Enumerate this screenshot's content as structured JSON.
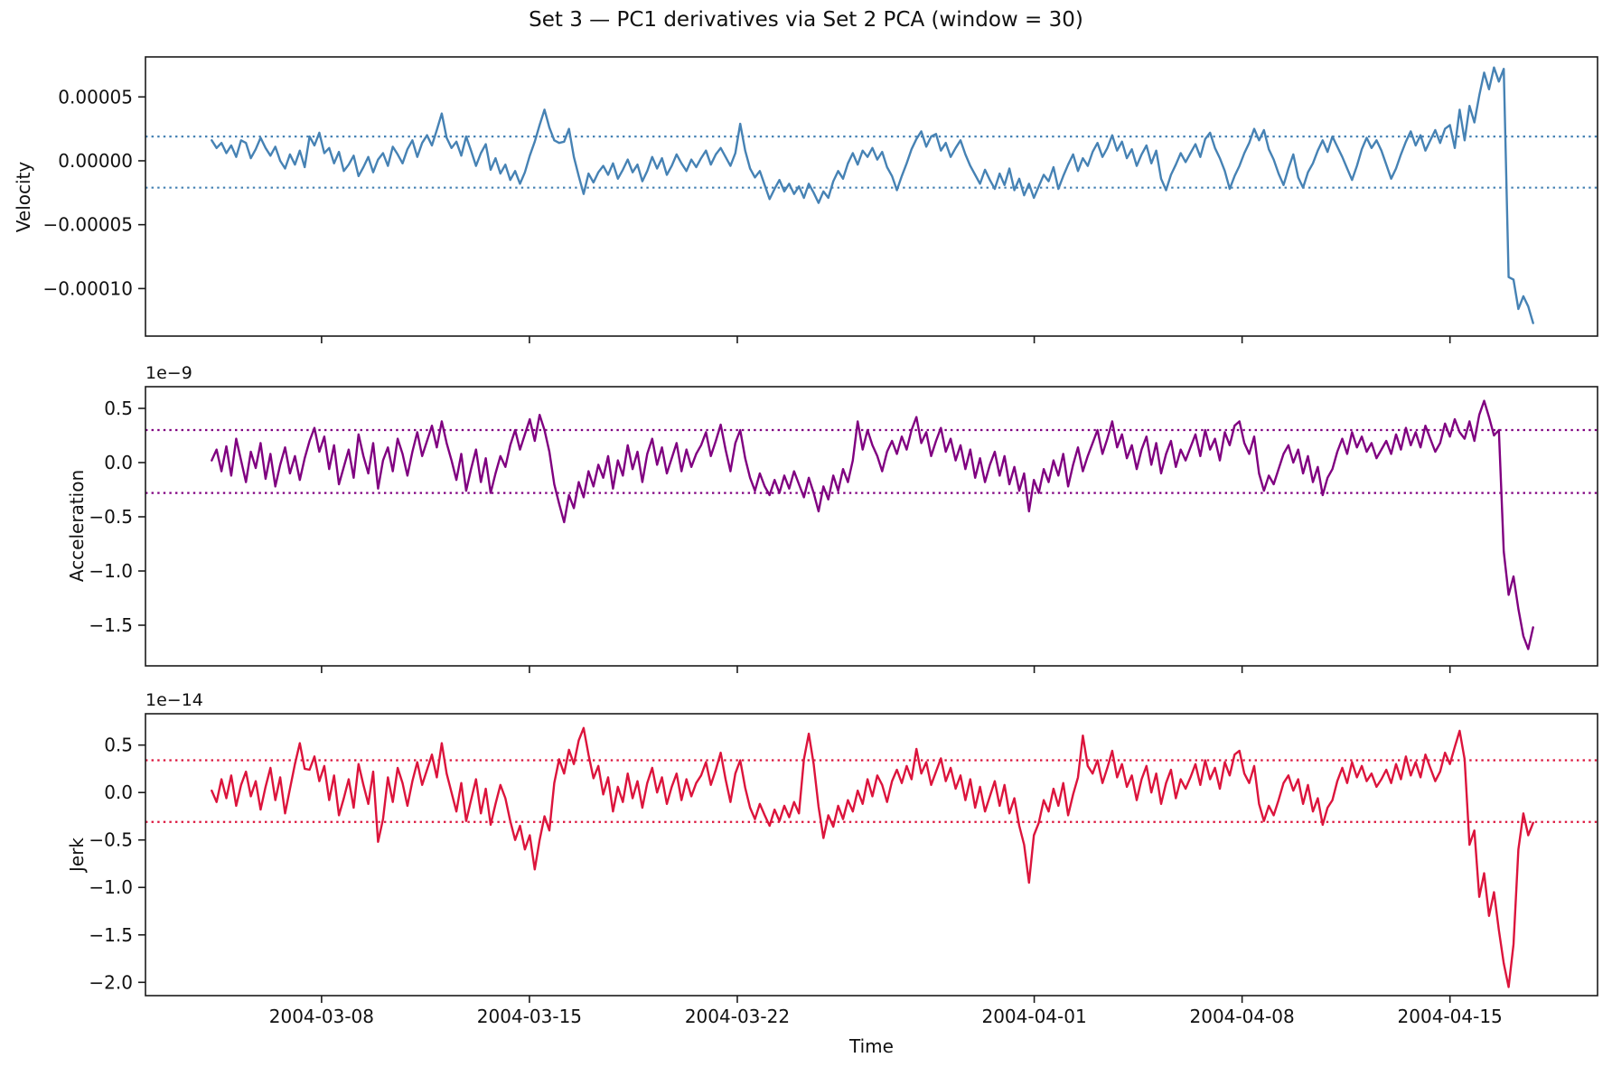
{
  "title": "Set 3 — PC1 derivatives via Set 2 PCA (window = 30)",
  "x_axis": {
    "label": "Time",
    "tick_labels": [
      "2004-03-08",
      "2004-03-15",
      "2004-03-22",
      "2004-04-01",
      "2004-04-08",
      "2004-04-15"
    ],
    "tick_day_positions": [
      5.93,
      12.93,
      19.93,
      29.93,
      36.93,
      43.93
    ],
    "xlim_days": [
      0,
      48.9
    ],
    "data_start_day": 2.23,
    "data_end_day": 46.73
  },
  "chart_data": [
    {
      "type": "line",
      "name": "velocity",
      "ylabel": "Velocity",
      "color": "#4682b4",
      "offset_label": null,
      "scale": "1e0",
      "ylim": [
        -13.72,
        8.13
      ],
      "yticks": [
        {
          "value": 5,
          "label": "0.00005"
        },
        {
          "value": 0,
          "label": "0.00000"
        },
        {
          "value": -5,
          "label": "−0.00005"
        },
        {
          "value": -10,
          "label": "−0.00010"
        }
      ],
      "value_unit": "1e-5",
      "thresholds": {
        "upper": 1.9,
        "lower": -2.1,
        "style": "dotted"
      },
      "values": [
        1.6,
        1.0,
        1.4,
        0.6,
        1.2,
        0.3,
        1.6,
        1.4,
        0.2,
        0.9,
        1.8,
        1.0,
        0.4,
        1.1,
        0.0,
        -0.6,
        0.5,
        -0.3,
        0.8,
        -0.5,
        1.9,
        1.2,
        2.2,
        0.6,
        1.0,
        -0.2,
        0.7,
        -0.8,
        -0.3,
        0.4,
        -1.2,
        -0.5,
        0.3,
        -0.9,
        0.1,
        0.6,
        -0.4,
        1.1,
        0.5,
        -0.2,
        0.9,
        1.6,
        0.3,
        1.4,
        2.0,
        1.2,
        2.4,
        3.7,
        1.8,
        1.0,
        1.5,
        0.4,
        1.9,
        0.8,
        -0.4,
        0.6,
        1.3,
        -0.7,
        0.2,
        -1.0,
        -0.3,
        -1.5,
        -0.8,
        -1.8,
        -0.9,
        0.4,
        1.5,
        2.8,
        4.0,
        2.6,
        1.6,
        1.4,
        1.5,
        2.5,
        0.3,
        -1.2,
        -2.6,
        -1.0,
        -1.7,
        -0.9,
        -0.4,
        -1.1,
        -0.2,
        -1.4,
        -0.7,
        0.1,
        -0.9,
        -0.3,
        -1.6,
        -0.8,
        0.3,
        -0.6,
        0.2,
        -1.1,
        -0.4,
        0.5,
        -0.2,
        -0.8,
        0.1,
        -0.5,
        0.2,
        0.8,
        -0.3,
        0.5,
        1.0,
        0.3,
        -0.4,
        0.6,
        2.9,
        0.8,
        -0.6,
        -1.3,
        -0.8,
        -1.9,
        -3.0,
        -2.2,
        -1.5,
        -2.4,
        -1.8,
        -2.6,
        -2.0,
        -2.9,
        -1.8,
        -2.5,
        -3.3,
        -2.4,
        -2.9,
        -1.6,
        -0.8,
        -1.4,
        -0.2,
        0.6,
        -0.3,
        0.8,
        0.3,
        1.0,
        0.1,
        0.7,
        -0.5,
        -1.2,
        -2.3,
        -1.2,
        -0.2,
        0.9,
        1.7,
        2.3,
        1.1,
        1.9,
        2.1,
        0.8,
        1.4,
        0.3,
        1.0,
        1.6,
        0.5,
        -0.4,
        -1.1,
        -1.8,
        -0.7,
        -1.5,
        -2.2,
        -1.0,
        -1.9,
        -0.6,
        -2.3,
        -1.4,
        -2.7,
        -1.8,
        -2.9,
        -2.0,
        -1.1,
        -1.6,
        -0.5,
        -2.2,
        -1.2,
        -0.3,
        0.5,
        -0.8,
        0.2,
        -0.4,
        0.7,
        1.4,
        0.3,
        1.0,
        2.0,
        0.8,
        1.5,
        0.2,
        0.9,
        -0.4,
        0.5,
        1.2,
        -0.2,
        0.8,
        -1.4,
        -2.3,
        -1.1,
        -0.3,
        0.6,
        -0.1,
        0.6,
        1.3,
        0.3,
        1.7,
        2.2,
        1.0,
        0.2,
        -0.8,
        -2.2,
        -1.2,
        -0.4,
        0.6,
        1.4,
        2.5,
        1.6,
        2.4,
        0.9,
        0.1,
        -1.0,
        -1.9,
        -0.6,
        0.5,
        -1.3,
        -2.1,
        -0.9,
        -0.2,
        0.8,
        1.6,
        0.7,
        1.9,
        1.1,
        0.3,
        -0.6,
        -1.5,
        -0.4,
        0.9,
        1.8,
        1.0,
        1.6,
        0.8,
        -0.3,
        -1.4,
        -0.6,
        0.5,
        1.5,
        2.3,
        1.2,
        2.0,
        0.8,
        1.6,
        2.4,
        1.4,
        2.5,
        2.8,
        1.0,
        4.0,
        1.6,
        4.3,
        3.0,
        5.1,
        6.9,
        5.6,
        7.3,
        6.2,
        7.2,
        -9.1,
        -9.3,
        -11.6,
        -10.6,
        -11.4,
        -12.7
      ]
    },
    {
      "type": "line",
      "name": "acceleration",
      "ylabel": "Acceleration",
      "color": "#800080",
      "offset_label": "1e−9",
      "scale": "1e-9",
      "ylim": [
        -1.875,
        0.7
      ],
      "yticks": [
        {
          "value": 0.5,
          "label": "0.5"
        },
        {
          "value": 0.0,
          "label": "0.0"
        },
        {
          "value": -0.5,
          "label": "−0.5"
        },
        {
          "value": -1.0,
          "label": "−1.0"
        },
        {
          "value": -1.5,
          "label": "−1.5"
        }
      ],
      "value_unit": "1e-9",
      "thresholds": {
        "upper": 0.3,
        "lower": -0.28,
        "style": "dotted"
      },
      "values": [
        0.02,
        0.12,
        -0.08,
        0.15,
        -0.12,
        0.22,
        0.02,
        -0.18,
        0.1,
        -0.05,
        0.18,
        -0.15,
        0.08,
        -0.22,
        -0.02,
        0.14,
        -0.1,
        0.06,
        -0.16,
        0.04,
        0.2,
        0.32,
        0.1,
        0.24,
        -0.06,
        0.16,
        -0.2,
        -0.04,
        0.12,
        -0.14,
        0.26,
        0.06,
        -0.1,
        0.18,
        -0.24,
        0.02,
        0.14,
        -0.08,
        0.22,
        0.08,
        -0.12,
        0.1,
        0.28,
        0.06,
        0.2,
        0.34,
        0.14,
        0.38,
        0.18,
        0.02,
        -0.16,
        0.08,
        -0.26,
        -0.06,
        0.12,
        -0.18,
        0.04,
        -0.28,
        -0.1,
        0.06,
        -0.04,
        0.16,
        0.3,
        0.12,
        0.26,
        0.4,
        0.2,
        0.44,
        0.3,
        0.1,
        -0.2,
        -0.38,
        -0.55,
        -0.3,
        -0.42,
        -0.18,
        -0.32,
        -0.08,
        -0.22,
        -0.02,
        -0.14,
        0.06,
        -0.24,
        0.02,
        -0.12,
        0.16,
        -0.06,
        0.1,
        -0.18,
        0.08,
        0.22,
        -0.02,
        0.14,
        -0.1,
        0.04,
        0.18,
        -0.08,
        0.12,
        -0.04,
        0.08,
        0.16,
        0.28,
        0.06,
        0.2,
        0.35,
        0.12,
        -0.08,
        0.18,
        0.3,
        0.04,
        -0.14,
        -0.26,
        -0.1,
        -0.22,
        -0.3,
        -0.16,
        -0.28,
        -0.12,
        -0.24,
        -0.08,
        -0.2,
        -0.32,
        -0.14,
        -0.28,
        -0.45,
        -0.22,
        -0.34,
        -0.12,
        -0.26,
        -0.06,
        -0.18,
        0.02,
        0.38,
        0.12,
        0.3,
        0.16,
        0.06,
        -0.08,
        0.1,
        0.2,
        0.08,
        0.24,
        0.12,
        0.3,
        0.42,
        0.18,
        0.28,
        0.06,
        0.2,
        0.32,
        0.1,
        0.22,
        0.02,
        0.16,
        -0.06,
        0.12,
        -0.14,
        0.04,
        -0.18,
        -0.02,
        0.1,
        -0.12,
        0.06,
        -0.2,
        -0.04,
        -0.26,
        -0.1,
        -0.45,
        -0.16,
        -0.28,
        -0.06,
        -0.18,
        0.02,
        -0.12,
        0.08,
        -0.22,
        -0.02,
        0.14,
        -0.08,
        0.06,
        0.18,
        0.3,
        0.08,
        0.22,
        0.38,
        0.14,
        0.26,
        0.04,
        0.16,
        -0.06,
        0.12,
        0.24,
        -0.02,
        0.18,
        -0.1,
        0.08,
        0.2,
        -0.04,
        0.12,
        0.02,
        0.14,
        0.26,
        0.06,
        0.3,
        0.12,
        0.22,
        0.02,
        0.28,
        0.16,
        0.34,
        0.38,
        0.18,
        0.08,
        0.24,
        -0.1,
        -0.26,
        -0.12,
        -0.2,
        -0.06,
        0.08,
        0.16,
        0.0,
        0.12,
        -0.1,
        0.06,
        -0.18,
        -0.04,
        -0.3,
        -0.14,
        -0.06,
        0.1,
        0.22,
        0.08,
        0.28,
        0.14,
        0.24,
        0.1,
        0.18,
        0.04,
        0.12,
        0.2,
        0.08,
        0.26,
        0.12,
        0.32,
        0.16,
        0.28,
        0.14,
        0.34,
        0.22,
        0.1,
        0.18,
        0.36,
        0.24,
        0.4,
        0.28,
        0.22,
        0.38,
        0.2,
        0.44,
        0.57,
        0.42,
        0.25,
        0.3,
        -0.82,
        -1.22,
        -1.05,
        -1.35,
        -1.6,
        -1.72,
        -1.52
      ]
    },
    {
      "type": "line",
      "name": "jerk",
      "ylabel": "Jerk",
      "color": "#dc143c",
      "offset_label": "1e−14",
      "scale": "1e-14",
      "ylim": [
        -2.14,
        0.83
      ],
      "yticks": [
        {
          "value": 0.5,
          "label": "0.5"
        },
        {
          "value": 0.0,
          "label": "0.0"
        },
        {
          "value": -0.5,
          "label": "−0.5"
        },
        {
          "value": -1.0,
          "label": "−1.0"
        },
        {
          "value": -1.5,
          "label": "−1.5"
        },
        {
          "value": -2.0,
          "label": "−2.0"
        }
      ],
      "value_unit": "1e-14",
      "thresholds": {
        "upper": 0.34,
        "lower": -0.31,
        "style": "dotted"
      },
      "values": [
        0.02,
        -0.1,
        0.14,
        -0.06,
        0.18,
        -0.14,
        0.08,
        0.22,
        -0.04,
        0.12,
        -0.18,
        0.06,
        0.26,
        -0.08,
        0.16,
        -0.22,
        0.04,
        0.3,
        0.52,
        0.25,
        0.24,
        0.38,
        0.12,
        0.28,
        -0.08,
        0.18,
        -0.24,
        -0.06,
        0.14,
        -0.16,
        0.3,
        0.08,
        -0.12,
        0.22,
        -0.52,
        -0.28,
        0.16,
        -0.1,
        0.26,
        0.1,
        -0.14,
        0.12,
        0.32,
        0.08,
        0.24,
        0.4,
        0.16,
        0.52,
        0.2,
        0.0,
        -0.2,
        0.1,
        -0.3,
        -0.08,
        0.14,
        -0.22,
        0.04,
        -0.34,
        -0.12,
        0.08,
        -0.06,
        -0.3,
        -0.5,
        -0.35,
        -0.6,
        -0.45,
        -0.81,
        -0.5,
        -0.25,
        -0.4,
        0.1,
        0.35,
        0.2,
        0.45,
        0.3,
        0.55,
        0.68,
        0.4,
        0.15,
        0.28,
        -0.02,
        0.16,
        -0.2,
        0.06,
        -0.1,
        0.2,
        -0.06,
        0.12,
        -0.16,
        0.1,
        0.26,
        0.0,
        0.16,
        -0.12,
        0.06,
        0.2,
        -0.08,
        0.14,
        -0.04,
        0.1,
        0.18,
        0.32,
        0.08,
        0.24,
        0.42,
        0.14,
        -0.1,
        0.2,
        0.34,
        0.05,
        -0.16,
        -0.28,
        -0.12,
        -0.24,
        -0.35,
        -0.18,
        -0.3,
        -0.14,
        -0.26,
        -0.1,
        -0.22,
        0.35,
        0.62,
        0.3,
        -0.15,
        -0.48,
        -0.24,
        -0.36,
        -0.14,
        -0.28,
        -0.08,
        -0.2,
        0.02,
        -0.12,
        0.14,
        -0.04,
        0.18,
        0.08,
        -0.1,
        0.12,
        0.24,
        0.1,
        0.28,
        0.14,
        0.46,
        0.2,
        0.32,
        0.08,
        0.22,
        0.36,
        0.12,
        0.26,
        0.04,
        0.18,
        -0.08,
        0.14,
        -0.16,
        0.06,
        -0.2,
        -0.04,
        0.12,
        -0.14,
        0.08,
        -0.22,
        -0.06,
        -0.35,
        -0.55,
        -0.95,
        -0.45,
        -0.32,
        -0.08,
        -0.2,
        0.04,
        -0.14,
        0.1,
        -0.24,
        -0.02,
        0.16,
        0.6,
        0.28,
        0.2,
        0.34,
        0.1,
        0.26,
        0.44,
        0.16,
        0.3,
        0.06,
        0.18,
        -0.08,
        0.14,
        0.28,
        0.0,
        0.2,
        -0.12,
        0.1,
        0.24,
        -0.06,
        0.14,
        0.04,
        0.16,
        0.3,
        0.08,
        0.34,
        0.14,
        0.26,
        0.04,
        0.32,
        0.18,
        0.4,
        0.44,
        0.2,
        0.1,
        0.28,
        -0.12,
        -0.3,
        -0.14,
        -0.24,
        -0.08,
        0.1,
        0.18,
        0.02,
        0.14,
        -0.12,
        0.08,
        -0.2,
        -0.06,
        -0.34,
        -0.16,
        -0.08,
        0.12,
        0.26,
        0.1,
        0.32,
        0.16,
        0.28,
        0.12,
        0.2,
        0.06,
        0.14,
        0.24,
        0.1,
        0.3,
        0.14,
        0.38,
        0.18,
        0.32,
        0.16,
        0.4,
        0.26,
        0.12,
        0.22,
        0.42,
        0.3,
        0.48,
        0.65,
        0.35,
        -0.55,
        -0.4,
        -1.1,
        -0.85,
        -1.3,
        -1.05,
        -1.45,
        -1.8,
        -2.05,
        -1.6,
        -0.6,
        -0.22,
        -0.45,
        -0.32
      ]
    }
  ]
}
